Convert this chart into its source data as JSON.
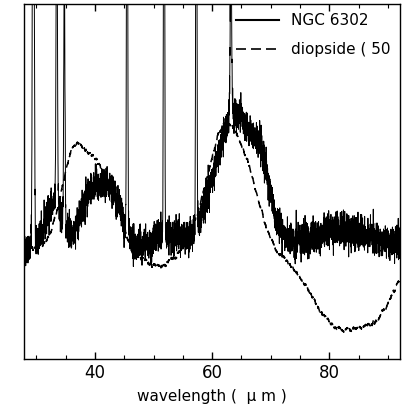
{
  "title": "",
  "xlabel": "wavelength (  μ m )",
  "ylabel": "",
  "xlim": [
    28,
    92
  ],
  "ylim": [
    -0.25,
    0.55
  ],
  "xticks": [
    40,
    60,
    80
  ],
  "legend_entries": [
    "NGC 6302",
    "diopside ( 50"
  ],
  "background_color": "#ffffff",
  "line_color": "#000000",
  "figsize": [
    4.08,
    4.08
  ],
  "dpi": 100
}
